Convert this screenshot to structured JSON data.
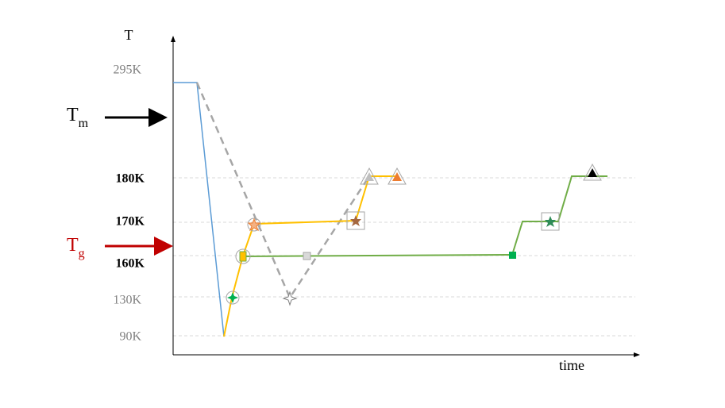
{
  "axis": {
    "y_label": "T",
    "x_label": "time"
  },
  "levels": [
    "295K",
    "180K",
    "170K",
    "160K",
    "130K",
    "90K"
  ],
  "markers": {
    "tm": {
      "main": "T",
      "sub": "m"
    },
    "tg": {
      "main": "T",
      "sub": "g"
    }
  }
}
